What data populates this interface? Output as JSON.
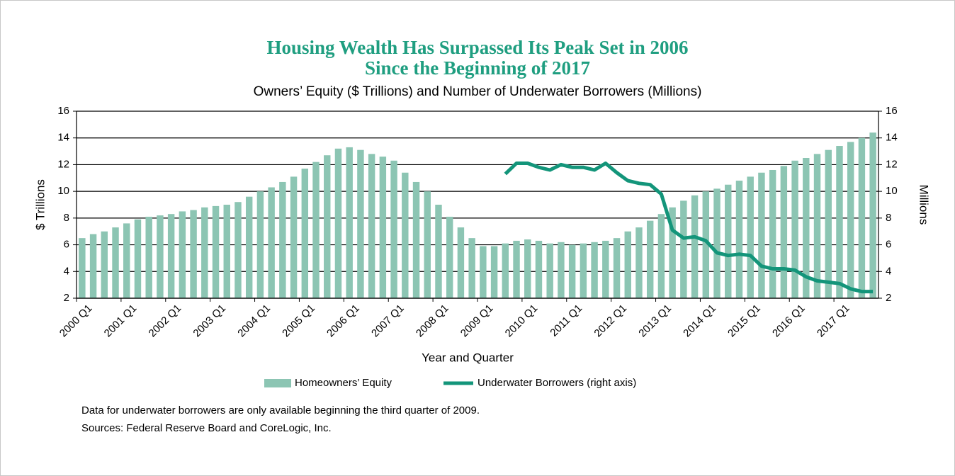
{
  "chart_data": {
    "type": "combo",
    "title": [
      "Housing Wealth Has Surpassed Its Peak Set in 2006",
      "Since the Beginning of 2017"
    ],
    "subtitle": "Owners’ Equity ($ Trillions) and Number of Underwater Borrowers (Millions)",
    "x_label": "Year and Quarter",
    "y_label": "$ Trillions",
    "y2_label": "Millions",
    "categories": [
      "2000 Q1",
      null,
      null,
      null,
      "2001 Q1",
      null,
      null,
      null,
      "2002 Q1",
      null,
      null,
      null,
      "2003 Q1",
      null,
      null,
      null,
      "2004 Q1",
      null,
      null,
      null,
      "2005 Q1",
      null,
      null,
      null,
      "2006 Q1",
      null,
      null,
      null,
      "2007 Q1",
      null,
      null,
      null,
      "2008 Q1",
      null,
      null,
      null,
      "2009 Q1",
      null,
      null,
      null,
      "2010 Q1",
      null,
      null,
      null,
      "2011 Q1",
      null,
      null,
      null,
      "2012 Q1",
      null,
      null,
      null,
      "2013 Q1",
      null,
      null,
      null,
      "2014 Q1",
      null,
      null,
      null,
      "2015 Q1",
      null,
      null,
      null,
      "2016 Q1",
      null,
      null,
      null,
      "2017 Q1",
      null,
      null,
      null
    ],
    "series": [
      {
        "name": "Homeowners’ Equity",
        "type": "bar",
        "color": "#8cc5b3",
        "values": [
          6.5,
          6.8,
          7.0,
          7.3,
          7.6,
          7.9,
          8.1,
          8.2,
          8.3,
          8.5,
          8.6,
          8.8,
          8.9,
          9.0,
          9.2,
          9.6,
          10.0,
          10.3,
          10.7,
          11.1,
          11.7,
          12.2,
          12.7,
          13.2,
          13.3,
          13.1,
          12.8,
          12.6,
          12.3,
          11.4,
          10.7,
          10.0,
          9.0,
          8.1,
          7.3,
          6.5,
          5.9,
          5.9,
          6.1,
          6.3,
          6.4,
          6.3,
          6.1,
          6.2,
          6.0,
          6.1,
          6.2,
          6.3,
          6.5,
          7.0,
          7.3,
          7.8,
          8.3,
          8.8,
          9.3,
          9.7,
          10.0,
          10.2,
          10.5,
          10.8,
          11.1,
          11.4,
          11.6,
          11.9,
          12.3,
          12.5,
          12.8,
          13.1,
          13.4,
          13.7,
          14.0,
          14.4
        ]
      },
      {
        "name": "Underwater Borrowers (right axis)",
        "type": "line",
        "axis": "y2",
        "color": "#13957a",
        "values": [
          null,
          null,
          null,
          null,
          null,
          null,
          null,
          null,
          null,
          null,
          null,
          null,
          null,
          null,
          null,
          null,
          null,
          null,
          null,
          null,
          null,
          null,
          null,
          null,
          null,
          null,
          null,
          null,
          null,
          null,
          null,
          null,
          null,
          null,
          null,
          null,
          null,
          null,
          11.3,
          12.1,
          12.1,
          11.8,
          11.6,
          12.0,
          11.8,
          11.8,
          11.6,
          12.1,
          11.4,
          10.8,
          10.6,
          10.5,
          9.8,
          7.1,
          6.5,
          6.6,
          6.3,
          5.4,
          5.2,
          5.3,
          5.2,
          4.4,
          4.2,
          4.2,
          4.1,
          3.6,
          3.3,
          3.2,
          3.1,
          2.7,
          2.5,
          2.5
        ]
      }
    ],
    "ylim": [
      2,
      16
    ],
    "yticks": [
      2,
      4,
      6,
      8,
      10,
      12,
      14,
      16
    ],
    "y2lim": [
      2,
      16
    ],
    "y2ticks": [
      2,
      4,
      6,
      8,
      10,
      12,
      14,
      16
    ],
    "grid": true,
    "legend": "bottom",
    "notes": [
      "Data for underwater borrowers are only available beginning the third quarter of 2009.",
      "Sources: Federal Reserve Board and CoreLogic, Inc."
    ]
  }
}
